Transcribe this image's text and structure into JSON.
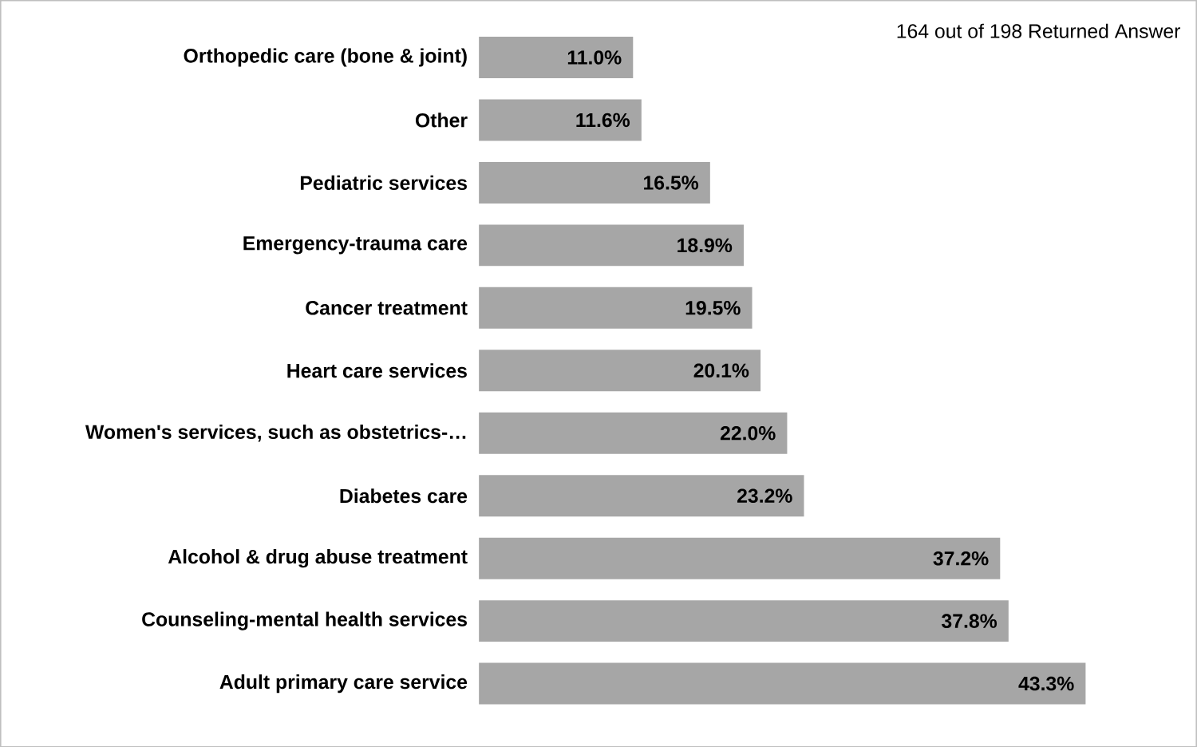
{
  "chart_data": {
    "type": "bar",
    "orientation": "horizontal",
    "color": "#a6a6a6",
    "categories": [
      "Orthopedic care (bone & joint)",
      "Other",
      "Pediatric services",
      "Emergency-trauma care",
      "Cancer treatment",
      "Heart care services",
      "Women's services, such as obstetrics-…",
      "Diabetes care",
      "Alcohol & drug abuse treatment",
      "Counseling-mental health services",
      "Adult primary care service"
    ],
    "values": [
      11.0,
      11.6,
      16.5,
      18.9,
      19.5,
      20.1,
      22.0,
      23.2,
      37.2,
      37.8,
      43.3
    ],
    "value_labels": [
      "11.0%",
      "11.6%",
      "16.5%",
      "18.9%",
      "19.5%",
      "20.1%",
      "22.0%",
      "23.2%",
      "37.2%",
      "37.8%",
      "43.3%"
    ],
    "annotations": [
      "164 out of 198 Returned Answer"
    ]
  }
}
